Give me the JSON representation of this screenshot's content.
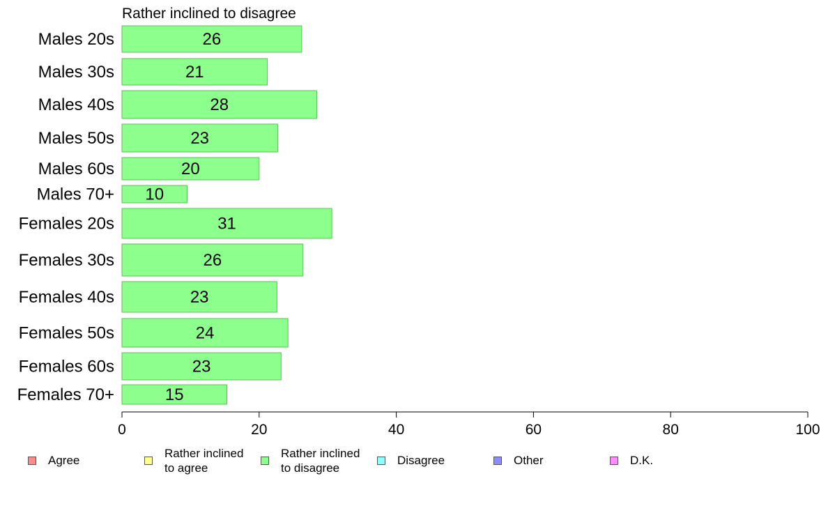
{
  "chart_data": {
    "type": "bar",
    "orientation": "horizontal",
    "title": "Rather inclined to disagree",
    "categories": [
      "Males 20s",
      "Males 30s",
      "Males 40s",
      "Males 50s",
      "Males 60s",
      "Males 70+",
      "Females 20s",
      "Females 30s",
      "Females 40s",
      "Females 50s",
      "Females 60s",
      "Females 70+"
    ],
    "values": [
      26,
      21,
      28,
      23,
      20,
      10,
      31,
      26,
      23,
      24,
      23,
      15
    ],
    "bar_values": [
      26.2,
      21.2,
      28.4,
      22.7,
      20.0,
      9.5,
      30.6,
      26.4,
      22.6,
      24.2,
      23.2,
      15.3
    ],
    "xlim": [
      0,
      100
    ],
    "xticks": [
      0,
      20,
      40,
      60,
      80,
      100
    ],
    "xlabel": "",
    "ylabel": "",
    "bar_color": "#8cff8c",
    "bar_edge_color": "#5cc05c",
    "grid": false,
    "legend_position": "bottom",
    "legend": [
      {
        "label": "Agree",
        "color": "#ff8c8c"
      },
      {
        "label": "Rather inclined\nto agree",
        "color": "#ffff8c"
      },
      {
        "label": "Rather inclined\nto disagree",
        "color": "#8cff8c"
      },
      {
        "label": "Disagree",
        "color": "#8cffff"
      },
      {
        "label": "Other",
        "color": "#8c8cff"
      },
      {
        "label": "D.K.",
        "color": "#ff8cff"
      }
    ]
  }
}
